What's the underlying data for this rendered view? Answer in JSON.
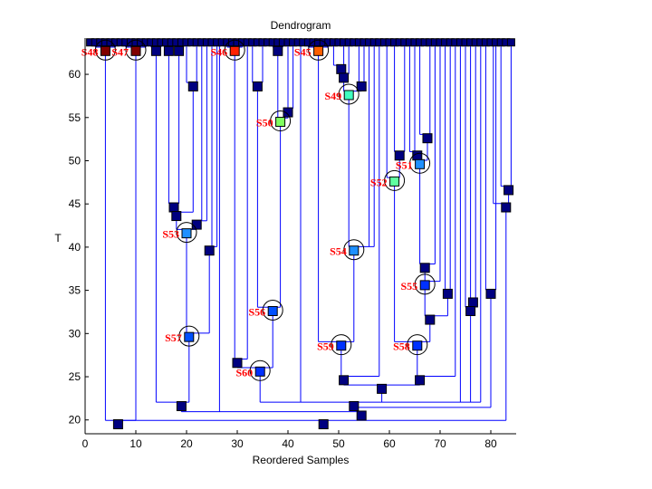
{
  "chart_data": {
    "type": "dendrogram",
    "title": "Dendrogram",
    "xlabel": "Reordered Samples",
    "ylabel": "T",
    "xlim": [
      0,
      85
    ],
    "ylim": [
      18.4,
      64.2
    ],
    "xticks": [
      0,
      10,
      20,
      30,
      40,
      50,
      60,
      70,
      80
    ],
    "yticks": [
      20,
      25,
      30,
      35,
      40,
      45,
      50,
      55,
      60
    ],
    "leaf_count": 84,
    "leaf_t": 63.7,
    "line_color": "#0000ff",
    "node_color_default": "#000080",
    "nodes": [
      {
        "id": "S48",
        "label": "S48",
        "x": 4,
        "t": 62.7,
        "color": "#800000",
        "ring": true,
        "children": [
          2,
          3,
          4,
          5,
          6
        ]
      },
      {
        "id": "S47",
        "label": "S47",
        "x": 10,
        "t": 62.7,
        "color": "#800000",
        "ring": true,
        "children": [
          8,
          9,
          10,
          11,
          12
        ]
      },
      {
        "id": "r1",
        "x": 6.5,
        "t": 19.5,
        "children": [
          "S48",
          "S47"
        ]
      },
      {
        "id": "n14",
        "x": 14,
        "t": 62.7,
        "children": [
          13,
          15
        ]
      },
      {
        "id": "n16",
        "x": 16.5,
        "t": 62.7,
        "children": [
          16,
          17
        ]
      },
      {
        "id": "n18",
        "x": 18.5,
        "t": 62.7,
        "children": [
          18,
          19
        ]
      },
      {
        "id": "a",
        "x": 17.5,
        "t": 44.6,
        "children": [
          "n16",
          "n18"
        ]
      },
      {
        "id": "n21",
        "x": 21.3,
        "t": 58.6,
        "children": [
          20,
          22
        ]
      },
      {
        "id": "b",
        "x": 18,
        "t": 43.6,
        "children": [
          "a",
          "n21"
        ]
      },
      {
        "id": "c",
        "x": 22,
        "t": 42.6,
        "children": [
          23,
          24
        ]
      },
      {
        "id": "S53",
        "label": "S53",
        "x": 20,
        "t": 41.6,
        "color": "#1e90ff",
        "ring": true,
        "children": [
          "b",
          "c"
        ]
      },
      {
        "id": "n25",
        "x": 24.5,
        "t": 39.6,
        "children": [
          25,
          26
        ]
      },
      {
        "id": "S57",
        "label": "S57",
        "x": 20.5,
        "t": 29.6,
        "color": "#0050ff",
        "ring": true,
        "children": [
          "S53",
          "n25"
        ]
      },
      {
        "id": "d",
        "x": 19,
        "t": 21.6,
        "children": [
          "n14",
          "S57"
        ]
      },
      {
        "id": "S46",
        "label": "S46",
        "x": 29.5,
        "t": 62.7,
        "color": "#ff2000",
        "ring": true,
        "children": [
          28,
          29,
          30,
          31
        ]
      },
      {
        "id": "h",
        "x": 30,
        "t": 26.6,
        "children": [
          "S46",
          32
        ]
      },
      {
        "id": "g",
        "x": 34,
        "t": 58.6,
        "children": [
          33,
          35
        ]
      },
      {
        "id": "n38",
        "x": 38,
        "t": 62.7,
        "children": [
          37,
          39
        ]
      },
      {
        "id": "i",
        "x": 40,
        "t": 55.6,
        "children": [
          40,
          41
        ]
      },
      {
        "id": "S50",
        "label": "S50",
        "x": 38.5,
        "t": 54.5,
        "color": "#80ff60",
        "ring": true,
        "children": [
          "n38",
          "i"
        ]
      },
      {
        "id": "S56",
        "label": "S56",
        "x": 37,
        "t": 32.6,
        "color": "#0050ff",
        "ring": true,
        "children": [
          "g",
          "S50"
        ]
      },
      {
        "id": "S60",
        "label": "S60",
        "x": 34.5,
        "t": 25.6,
        "color": "#0030ff",
        "ring": true,
        "children": [
          "h",
          "S56"
        ]
      },
      {
        "id": "S45",
        "label": "S45",
        "x": 46,
        "t": 62.7,
        "color": "#ff6000",
        "ring": true,
        "children": [
          44,
          45,
          47,
          48
        ]
      },
      {
        "id": "l",
        "x": 50.5,
        "t": 60.6,
        "children": [
          49,
          51
        ]
      },
      {
        "id": "j",
        "x": 51,
        "t": 59.6,
        "children": [
          "l",
          52
        ]
      },
      {
        "id": "k",
        "x": 54.5,
        "t": 58.6,
        "children": [
          54,
          55
        ]
      },
      {
        "id": "S49",
        "label": "S49",
        "x": 52,
        "t": 57.6,
        "color": "#40ffc0",
        "ring": true,
        "children": [
          "j",
          "k"
        ]
      },
      {
        "id": "S54",
        "label": "S54",
        "x": 53,
        "t": 39.6,
        "color": "#1e90ff",
        "ring": true,
        "children": [
          "S49",
          56,
          57
        ]
      },
      {
        "id": "S59",
        "label": "S59",
        "x": 50.5,
        "t": 28.6,
        "color": "#0030ff",
        "ring": true,
        "children": [
          "S45",
          "S54"
        ]
      },
      {
        "id": "m",
        "x": 51,
        "t": 24.6,
        "children": [
          "S59",
          58
        ]
      },
      {
        "id": "n62",
        "x": 62,
        "t": 50.6,
        "children": [
          61,
          63
        ]
      },
      {
        "id": "S52",
        "label": "S52",
        "x": 61,
        "t": 47.6,
        "color": "#60ffa0",
        "ring": true,
        "children": [
          59.5,
          "n62"
        ]
      },
      {
        "id": "n65",
        "x": 65.5,
        "t": 50.6,
        "children": [
          64,
          65
        ]
      },
      {
        "id": "n67",
        "x": 67.5,
        "t": 52.6,
        "children": [
          66,
          68
        ]
      },
      {
        "id": "S51",
        "label": "S51",
        "x": 66,
        "t": 49.6,
        "color": "#1e90ff",
        "ring": true,
        "children": [
          "n65",
          "n67"
        ]
      },
      {
        "id": "p37",
        "x": 67,
        "t": 37.6,
        "children": [
          "S51",
          69
        ]
      },
      {
        "id": "S55",
        "label": "S55",
        "x": 67,
        "t": 35.6,
        "color": "#0030ff",
        "ring": true,
        "children": [
          "p37",
          70
        ]
      },
      {
        "id": "n71",
        "x": 71.5,
        "t": 34.6,
        "children": [
          71,
          72
        ]
      },
      {
        "id": "o",
        "x": 68,
        "t": 31.6,
        "children": [
          "S55",
          "n71"
        ]
      },
      {
        "id": "S58",
        "label": "S58",
        "x": 65.5,
        "t": 28.6,
        "color": "#0030ff",
        "ring": true,
        "children": [
          "S52",
          "o"
        ]
      },
      {
        "id": "p",
        "x": 66,
        "t": 24.6,
        "children": [
          "S58",
          73
        ]
      },
      {
        "id": "q",
        "x": 58.5,
        "t": 23.6,
        "children": [
          "m",
          "p"
        ]
      },
      {
        "id": "n765",
        "x": 76.5,
        "t": 33.6,
        "children": [
          76,
          77
        ]
      },
      {
        "id": "n76",
        "x": 76,
        "t": 32.6,
        "children": [
          75,
          "n765"
        ]
      },
      {
        "id": "r",
        "x": 53,
        "t": 21.6,
        "children": [
          "S60",
          42.5,
          "q",
          74,
          "n76",
          78
        ]
      },
      {
        "id": "n80",
        "x": 80,
        "t": 34.6,
        "children": [
          79,
          81
        ]
      },
      {
        "id": "s",
        "x": 54.5,
        "t": 21,
        "hidden": true,
        "children": [
          "r",
          "n80"
        ]
      },
      {
        "id": "t2",
        "x": 54.5,
        "t": 20.5,
        "children": [
          "d",
          26.5,
          "s"
        ]
      },
      {
        "id": "n835",
        "x": 83.5,
        "t": 46.6,
        "children": [
          82,
          84
        ]
      },
      {
        "id": "n83",
        "x": 83,
        "t": 44.6,
        "children": [
          80.5,
          "n835"
        ]
      },
      {
        "id": "root",
        "x": 47,
        "t": 19.5,
        "children": [
          "r1",
          "t2",
          "n83"
        ]
      }
    ]
  }
}
